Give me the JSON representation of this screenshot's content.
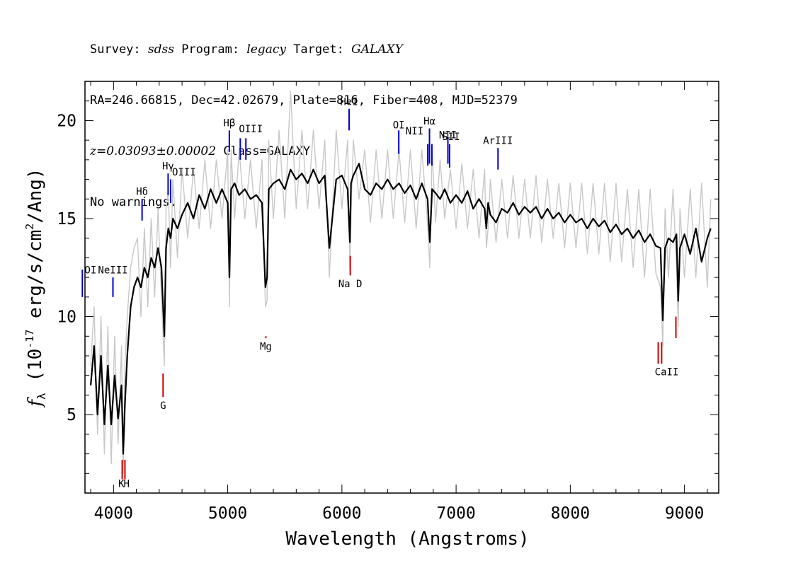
{
  "header": {
    "line1": {
      "survey_label": "Survey: ",
      "survey": "sdss",
      "program_label": " Program: ",
      "program": "legacy",
      "target_label": " Target: ",
      "target": "GALAXY"
    },
    "line2": "RA=246.66815, Dec=42.02679, Plate=816, Fiber=408, MJD=52379",
    "line3": {
      "redshift": "z=0.03093±0.00002",
      "class": " Class=GALAXY"
    },
    "line4": "No warnings."
  },
  "chart_data": {
    "type": "line",
    "xlabel": "Wavelength (Angstroms)",
    "ylabel": "f_λ (10^-17 erg/s/cm^2/Ang)",
    "xlim": [
      3750,
      9300
    ],
    "ylim": [
      1,
      22
    ],
    "xticks": [
      4000,
      5000,
      6000,
      7000,
      8000,
      9000
    ],
    "yticks": [
      5,
      10,
      15,
      20
    ],
    "grid": false,
    "series": [
      {
        "role": "flux",
        "color": "#000000",
        "x": [
          3800,
          3830,
          3860,
          3890,
          3920,
          3950,
          3980,
          4010,
          4040,
          4070,
          4085,
          4100,
          4120,
          4150,
          4180,
          4210,
          4240,
          4270,
          4300,
          4330,
          4360,
          4390,
          4420,
          4445,
          4460,
          4480,
          4500,
          4520,
          4560,
          4600,
          4650,
          4700,
          4750,
          4800,
          4850,
          4900,
          4950,
          5000,
          5015,
          5030,
          5060,
          5100,
          5150,
          5200,
          5250,
          5300,
          5330,
          5345,
          5360,
          5400,
          5450,
          5500,
          5550,
          5600,
          5650,
          5700,
          5750,
          5800,
          5850,
          5890,
          5950,
          6000,
          6050,
          6070,
          6080,
          6100,
          6150,
          6200,
          6250,
          6300,
          6350,
          6400,
          6450,
          6500,
          6550,
          6600,
          6650,
          6700,
          6750,
          6770,
          6790,
          6820,
          6860,
          6900,
          6950,
          7000,
          7050,
          7100,
          7150,
          7200,
          7250,
          7265,
          7280,
          7300,
          7350,
          7400,
          7450,
          7500,
          7550,
          7600,
          7650,
          7700,
          7750,
          7800,
          7850,
          7900,
          7950,
          8000,
          8050,
          8100,
          8150,
          8200,
          8250,
          8300,
          8350,
          8400,
          8450,
          8500,
          8550,
          8600,
          8650,
          8700,
          8750,
          8790,
          8810,
          8830,
          8860,
          8900,
          8930,
          8945,
          8960,
          9000,
          9050,
          9100,
          9150,
          9200,
          9230
        ],
        "y": [
          6.5,
          8.5,
          5.0,
          8.0,
          4.5,
          7.5,
          4.5,
          7.0,
          4.8,
          6.5,
          3.0,
          5.5,
          8.0,
          10.5,
          11.5,
          12.0,
          11.5,
          12.5,
          12.0,
          13.0,
          12.5,
          13.5,
          12.5,
          9.0,
          13.5,
          14.5,
          14.0,
          15.0,
          14.5,
          15.2,
          15.8,
          15.0,
          16.2,
          15.5,
          16.5,
          15.8,
          16.5,
          15.8,
          12.0,
          16.5,
          16.8,
          16.2,
          16.5,
          16.0,
          16.2,
          15.8,
          11.5,
          12.0,
          16.5,
          16.8,
          17.0,
          16.5,
          17.5,
          17.0,
          17.3,
          16.8,
          17.5,
          16.8,
          17.2,
          13.5,
          17.0,
          17.2,
          16.5,
          13.8,
          16.8,
          17.2,
          17.8,
          16.5,
          16.2,
          16.8,
          16.5,
          17.0,
          16.5,
          16.8,
          16.3,
          16.7,
          16.0,
          16.8,
          16.0,
          13.8,
          16.5,
          16.3,
          16.0,
          16.5,
          15.8,
          16.2,
          15.8,
          16.4,
          15.5,
          16.0,
          15.5,
          14.5,
          15.8,
          15.2,
          14.8,
          15.5,
          15.3,
          15.8,
          15.2,
          15.6,
          15.3,
          15.6,
          15.0,
          15.5,
          15.0,
          15.3,
          14.8,
          15.2,
          14.8,
          15.0,
          14.5,
          15.0,
          14.6,
          14.9,
          14.3,
          14.7,
          14.2,
          14.5,
          14.0,
          14.4,
          13.8,
          14.2,
          13.6,
          13.5,
          9.8,
          13.5,
          14.0,
          13.8,
          14.2,
          10.8,
          13.5,
          14.2,
          13.2,
          14.5,
          12.8,
          14.0,
          14.5
        ]
      },
      {
        "role": "error",
        "color": "#c8c8c8",
        "x": [
          3800,
          3830,
          3860,
          3890,
          3920,
          3950,
          3980,
          4010,
          4040,
          4070,
          4085,
          4100,
          4120,
          4150,
          4180,
          4210,
          4240,
          4270,
          4300,
          4330,
          4360,
          4390,
          4420,
          4445,
          4460,
          4480,
          4500,
          4520,
          4560,
          4600,
          4650,
          4700,
          4750,
          4800,
          4850,
          4900,
          4950,
          5000,
          5015,
          5030,
          5060,
          5100,
          5150,
          5200,
          5250,
          5300,
          5330,
          5345,
          5360,
          5400,
          5450,
          5500,
          5550,
          5600,
          5650,
          5700,
          5750,
          5800,
          5850,
          5890,
          5950,
          6000,
          6050,
          6070,
          6080,
          6100,
          6150,
          6200,
          6250,
          6300,
          6350,
          6400,
          6450,
          6500,
          6550,
          6600,
          6650,
          6700,
          6750,
          6770,
          6790,
          6820,
          6860,
          6900,
          6950,
          7000,
          7050,
          7100,
          7150,
          7200,
          7250,
          7265,
          7280,
          7300,
          7350,
          7400,
          7450,
          7500,
          7550,
          7600,
          7650,
          7700,
          7750,
          7800,
          7850,
          7900,
          7950,
          8000,
          8050,
          8100,
          8150,
          8200,
          8250,
          8300,
          8350,
          8400,
          8450,
          8500,
          8550,
          8600,
          8650,
          8700,
          8750,
          8790,
          8810,
          8830,
          8860,
          8900,
          8930,
          8945,
          8960,
          9000,
          9050,
          9100,
          9150,
          9200,
          9230
        ],
        "y": [
          7.5,
          10.5,
          4.0,
          10.0,
          3.0,
          9.5,
          2.5,
          9.0,
          3.5,
          8.5,
          2.0,
          7.5,
          10.0,
          12.5,
          13.5,
          14.0,
          10.0,
          14.5,
          10.5,
          15.0,
          11.0,
          15.5,
          11.0,
          7.5,
          15.5,
          16.5,
          12.5,
          17.0,
          13.0,
          17.5,
          14.0,
          17.5,
          14.5,
          18.0,
          14.5,
          18.0,
          15.0,
          18.5,
          10.5,
          18.5,
          15.0,
          18.5,
          15.0,
          18.0,
          14.5,
          18.0,
          10.5,
          10.8,
          19.0,
          15.0,
          19.5,
          15.0,
          21.5,
          15.5,
          19.5,
          15.5,
          19.5,
          15.5,
          19.0,
          12.0,
          19.5,
          15.5,
          19.0,
          12.5,
          15.0,
          19.0,
          16.0,
          18.5,
          14.8,
          18.5,
          15.0,
          18.5,
          15.0,
          18.5,
          14.8,
          18.5,
          14.5,
          18.5,
          14.8,
          12.5,
          18.5,
          14.8,
          18.0,
          15.0,
          17.5,
          14.5,
          17.8,
          14.5,
          17.5,
          14.0,
          17.5,
          13.5,
          14.5,
          17.0,
          13.8,
          17.0,
          14.0,
          17.2,
          14.0,
          17.0,
          14.0,
          17.2,
          13.8,
          17.0,
          14.0,
          16.8,
          13.5,
          16.8,
          13.5,
          16.8,
          13.2,
          16.8,
          13.2,
          16.8,
          12.8,
          16.8,
          12.8,
          16.5,
          12.5,
          16.5,
          12.0,
          16.5,
          12.2,
          11.5,
          8.5,
          15.5,
          12.0,
          16.5,
          12.5,
          9.5,
          15.5,
          12.0,
          16.5,
          12.0,
          16.8,
          11.5,
          16.0
        ]
      }
    ],
    "emission_lines": [
      {
        "label": "OI",
        "x": 3727,
        "y_top": 12.4,
        "y_bot": 11.0,
        "label_y": 12.2,
        "label_anchor": "end",
        "label_dx": 20
      },
      {
        "label": "NeIII",
        "x": 3995,
        "y_top": 12.0,
        "y_bot": 11.0,
        "label_y": 12.2,
        "label_anchor": "middle",
        "label_dx": 0
      },
      {
        "label": "Hδ",
        "x": 4250,
        "y_top": 16.0,
        "y_bot": 14.9,
        "label_y": 16.2,
        "label_anchor": "middle",
        "label_dx": 0
      },
      {
        "label": "Hγ",
        "x": 4478,
        "y_top": 17.3,
        "y_bot": 16.2,
        "label_y": 17.5,
        "label_anchor": "middle",
        "label_dx": 0
      },
      {
        "label": "OIII",
        "x": 4500,
        "y_top": 17.0,
        "y_bot": 15.8,
        "label_y": 17.2,
        "label_anchor": "start",
        "label_dx": 2
      },
      {
        "label": "Hβ",
        "x": 5014,
        "y_top": 19.5,
        "y_bot": 18.4,
        "label_y": 19.7,
        "label_anchor": "middle",
        "label_dx": 0
      },
      {
        "label": "OIII",
        "x": 5110,
        "y_top": 19.1,
        "y_bot": 18.0,
        "label_y": 19.4,
        "label_anchor": "start",
        "label_dx": -2
      },
      {
        "label": "",
        "x": 5159,
        "y_top": 19.1,
        "y_bot": 18.0,
        "label_y": 19.4,
        "label_anchor": "middle",
        "label_dx": 0
      },
      {
        "label": "HeI",
        "x": 6063,
        "y_top": 20.6,
        "y_bot": 19.5,
        "label_y": 20.8,
        "label_anchor": "middle",
        "label_dx": 0
      },
      {
        "label": "OI",
        "x": 6498,
        "y_top": 19.5,
        "y_bot": 18.3,
        "label_y": 19.6,
        "label_anchor": "middle",
        "label_dx": 0
      },
      {
        "label": "NII",
        "x": 6752,
        "y_top": 18.8,
        "y_bot": 17.7,
        "label_y": 19.3,
        "label_anchor": "end",
        "label_dx": -6
      },
      {
        "label": "Hα",
        "x": 6767,
        "y_top": 19.6,
        "y_bot": 17.8,
        "label_y": 19.8,
        "label_anchor": "middle",
        "label_dx": 0
      },
      {
        "label": "",
        "x": 6788,
        "y_top": 18.8,
        "y_bot": 17.7,
        "label_y": 19.3,
        "label_anchor": "middle",
        "label_dx": 0
      },
      {
        "label": "NII",
        "x": 6928,
        "y_top": 19.1,
        "y_bot": 17.8,
        "label_y": 19.1,
        "label_anchor": "middle",
        "label_dx": 0
      },
      {
        "label": "SII",
        "x": 6943,
        "y_top": 18.8,
        "y_bot": 17.6,
        "label_y": 19.0,
        "label_anchor": "middle",
        "label_dx": 2
      },
      {
        "label": "ArIII",
        "x": 7367,
        "y_top": 18.6,
        "y_bot": 17.5,
        "label_y": 18.8,
        "label_anchor": "middle",
        "label_dx": 0
      }
    ],
    "absorption_lines": [
      {
        "label": "K",
        "x": 4076,
        "y_top": 2.7,
        "y_bot": 1.7,
        "label_y": 1.3,
        "label_anchor": "end",
        "label_dx": 3
      },
      {
        "label": "H",
        "x": 4100,
        "y_top": 2.7,
        "y_bot": 1.7,
        "label_y": 1.3,
        "label_anchor": "start",
        "label_dx": -2
      },
      {
        "label": "G",
        "x": 4434,
        "y_top": 7.1,
        "y_bot": 5.9,
        "label_y": 5.3,
        "label_anchor": "middle",
        "label_dx": 0
      },
      {
        "label": "Mg",
        "x": 5334,
        "y_top": 9.0,
        "y_bot": 8.9,
        "label_y": 8.3,
        "label_anchor": "middle",
        "label_dx": 0
      },
      {
        "label": "Na D",
        "x": 6073,
        "y_top": 13.1,
        "y_bot": 12.1,
        "label_y": 11.5,
        "label_anchor": "middle",
        "label_dx": 0
      },
      {
        "label": "CaII",
        "x": 8770,
        "y_top": 8.7,
        "y_bot": 7.6,
        "label_y": 7.0,
        "label_anchor": "middle",
        "label_dx": 12
      },
      {
        "label": "",
        "x": 8800,
        "y_top": 8.7,
        "y_bot": 7.6,
        "label_y": 7.0,
        "label_anchor": "middle",
        "label_dx": 0
      },
      {
        "label": "",
        "x": 8925,
        "y_top": 10.0,
        "y_bot": 8.9,
        "label_y": 8.3,
        "label_anchor": "middle",
        "label_dx": 0
      }
    ],
    "emission_color": "#0000cc",
    "absorption_color": "#cc0000"
  }
}
